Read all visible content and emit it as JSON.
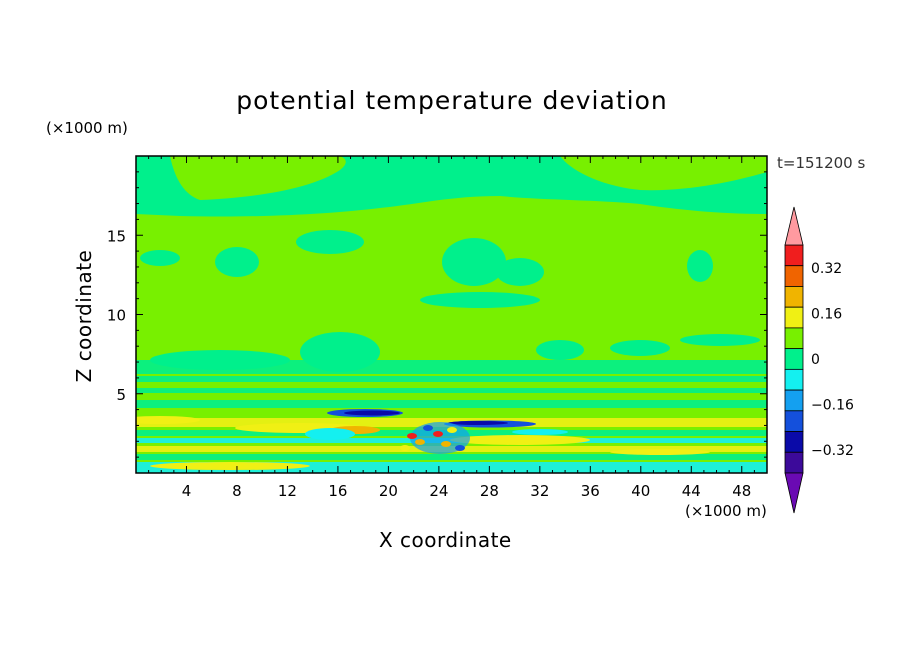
{
  "chart_data": {
    "type": "heatmap",
    "title": "potential temperature deviation",
    "xlabel": "X coordinate",
    "ylabel": "Z coordinate",
    "x_unit_label": "(×1000 m)",
    "y_unit_label": "(×1000 m)",
    "time_label": "t=151200 s",
    "xlim": [
      0,
      50
    ],
    "ylim": [
      0,
      20
    ],
    "x_ticks": [
      4,
      8,
      12,
      16,
      20,
      24,
      28,
      32,
      36,
      40,
      44,
      48
    ],
    "y_ticks": [
      5,
      10,
      15
    ],
    "colorbar": {
      "levels": [
        -0.48,
        -0.4,
        -0.32,
        -0.24,
        -0.16,
        -0.08,
        0,
        0.08,
        0.16,
        0.24,
        0.32,
        0.4,
        0.48
      ],
      "colors": [
        "#6a0ab3",
        "#3c0a9a",
        "#0a0aa8",
        "#1450dc",
        "#14a0f0",
        "#14f0f0",
        "#00f08c",
        "#78f000",
        "#f0f014",
        "#f0b400",
        "#f06400",
        "#f01e1e",
        "#ff9aa0"
      ],
      "tick_labels": [
        "0.32",
        "0.16",
        "0",
        "−0.16",
        "−0.32"
      ],
      "tick_values": [
        0.32,
        0.16,
        0,
        -0.16,
        -0.32
      ],
      "extend": "both"
    },
    "field_description": "mostly 0 to 0.08 (green) with -0.08 to 0 (teal) patches; strong anomalies near z<4 around x=16-34"
  }
}
